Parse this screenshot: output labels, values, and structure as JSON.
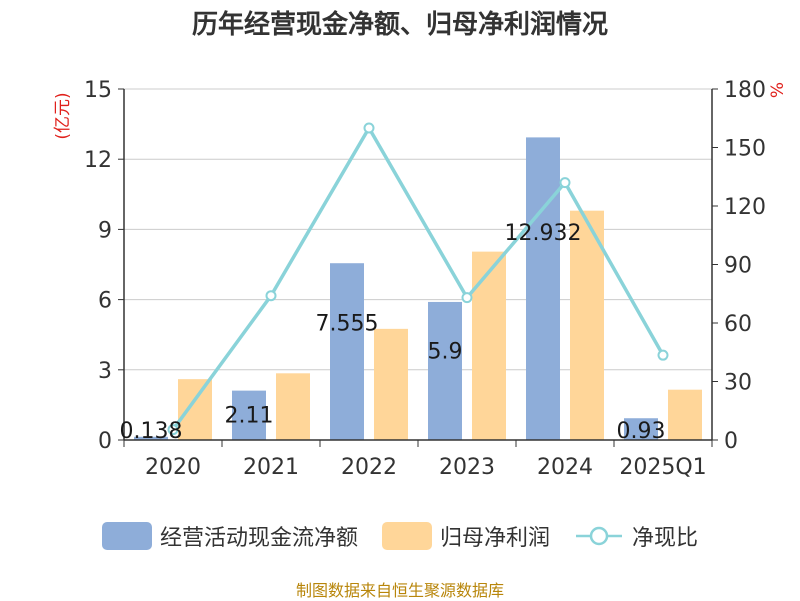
{
  "chart_data": {
    "type": "bar",
    "title": "历年经营现金净额、归母净利润情况",
    "categories": [
      "2020",
      "2021",
      "2022",
      "2023",
      "2024",
      "2025Q1"
    ],
    "series": [
      {
        "name": "经营活动现金流净额",
        "type": "bar",
        "axis": "left",
        "color": "#8eadd9",
        "values": [
          0.138,
          2.11,
          7.555,
          5.9,
          12.932,
          0.93
        ],
        "labels": [
          "0.138",
          "2.11",
          "7.555",
          "5.9",
          "12.932",
          "0.93"
        ]
      },
      {
        "name": "归母净利润",
        "type": "bar",
        "axis": "left",
        "color": "#ffd699",
        "values": [
          2.6,
          2.85,
          4.75,
          8.05,
          9.8,
          2.15
        ]
      },
      {
        "name": "净现比",
        "type": "line",
        "axis": "right",
        "color": "#8ad3d9",
        "values": [
          5.3,
          74,
          160,
          73,
          132,
          43.5
        ]
      }
    ],
    "left_axis": {
      "label": "(亿元)",
      "min": 0,
      "max": 15,
      "ticks": [
        "0",
        "3",
        "6",
        "9",
        "12",
        "15"
      ]
    },
    "right_axis": {
      "label": "%",
      "min": 0,
      "max": 180,
      "ticks": [
        "0",
        "30",
        "60",
        "90",
        "120",
        "150",
        "180"
      ]
    },
    "grid": true,
    "legend_position": "bottom"
  },
  "footer": {
    "source": "制图数据来自恒生聚源数据库"
  }
}
